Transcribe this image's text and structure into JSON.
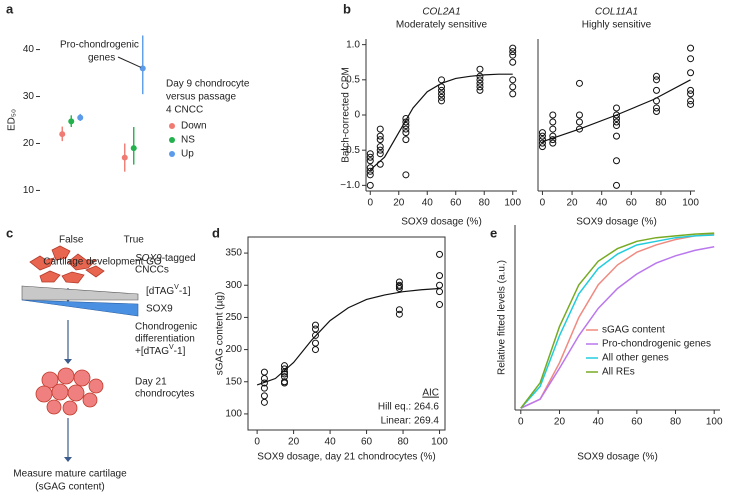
{
  "chart_data": [
    {
      "type": "pointrange",
      "panel": "a",
      "categories": [
        "False",
        "True"
      ],
      "series": [
        {
          "name": "Down",
          "color": "#f07b72",
          "values": [
            22,
            17
          ],
          "low": [
            20.5,
            14
          ],
          "high": [
            23.6,
            20
          ]
        },
        {
          "name": "NS",
          "color": "#22b14c",
          "values": [
            24.7,
            19
          ],
          "low": [
            23.5,
            15.5
          ],
          "high": [
            26,
            23.5
          ]
        },
        {
          "name": "Up",
          "color": "#5b9bea",
          "values": [
            25.5,
            36
          ],
          "low": [
            24.8,
            30.5
          ],
          "high": [
            26.3,
            43
          ]
        }
      ],
      "ylim": [
        2,
        48
      ],
      "yticks": [
        10,
        20,
        30,
        40
      ],
      "xlabel": "Cartilage development GO",
      "ylabel": "ED₅₀",
      "legend_title": [
        "Day 9 chondrocyte",
        "versus passage",
        "4 CNCC"
      ],
      "annotation": [
        "Pro-chondrogenic",
        "genes"
      ]
    },
    {
      "type": "scatter",
      "panel": "b",
      "title": "COL2A1",
      "subtitle": "Moderately sensitive",
      "x": [
        0,
        0,
        0,
        0,
        0,
        0,
        0,
        7,
        7,
        7,
        7,
        7,
        7,
        7,
        25,
        25,
        25,
        25,
        25,
        25,
        25,
        50,
        50,
        50,
        50,
        50,
        50,
        77,
        77,
        77,
        77,
        77,
        77,
        100,
        100,
        100,
        100,
        100,
        100,
        100
      ],
      "y": [
        -0.55,
        -0.6,
        -0.65,
        -0.75,
        -0.8,
        -0.85,
        -1.0,
        -0.2,
        -0.3,
        -0.35,
        -0.45,
        -0.5,
        -0.55,
        -0.7,
        -0.05,
        -0.1,
        -0.15,
        -0.2,
        -0.25,
        -0.35,
        -0.85,
        0.5,
        0.4,
        0.35,
        0.3,
        0.25,
        0.2,
        0.65,
        0.55,
        0.5,
        0.45,
        0.4,
        0.35,
        0.95,
        0.9,
        0.85,
        0.75,
        0.5,
        0.4,
        0.3
      ],
      "fit": {
        "x": [
          0,
          10,
          20,
          30,
          40,
          50,
          60,
          70,
          80,
          90,
          100
        ],
        "y": [
          -0.78,
          -0.6,
          -0.25,
          0.1,
          0.33,
          0.45,
          0.52,
          0.55,
          0.57,
          0.58,
          0.58
        ]
      },
      "xlim": [
        -3,
        103
      ],
      "ylim": [
        -1.08,
        1.08
      ],
      "xticks": [
        0,
        20,
        40,
        60,
        80,
        100
      ],
      "yticks": [
        {
          "value": -1,
          "label": "−1.0"
        },
        {
          "value": -0.5,
          "label": "−0.5"
        },
        0,
        0.5,
        {
          "value": 1,
          "label": "1.0"
        }
      ],
      "xlabel": "SOX9 dosage (%)",
      "ylabel": "Batch-corrected CPM"
    },
    {
      "type": "scatter",
      "title": "COL11A1",
      "subtitle": "Highly sensitive",
      "x": [
        0,
        0,
        0,
        0,
        0,
        7,
        7,
        7,
        7,
        7,
        7,
        25,
        25,
        25,
        25,
        50,
        50,
        50,
        50,
        50,
        50,
        50,
        50,
        77,
        77,
        77,
        77,
        77,
        77,
        100,
        100,
        100,
        100,
        100,
        100,
        100
      ],
      "y": [
        -0.25,
        -0.3,
        -0.35,
        -0.4,
        -0.45,
        0,
        -0.1,
        -0.2,
        -0.3,
        -0.35,
        -0.4,
        0.45,
        0,
        -0.1,
        -0.2,
        0.1,
        0,
        -0.05,
        -0.1,
        -0.15,
        -0.3,
        -0.65,
        -1.0,
        0.55,
        0.5,
        0.35,
        0.2,
        0.1,
        0.05,
        0.95,
        0.8,
        0.6,
        0.35,
        0.3,
        0.2,
        0.15
      ],
      "fit": {
        "x": [
          0,
          25,
          50,
          75,
          100
        ],
        "y": [
          -0.38,
          -0.2,
          0,
          0.22,
          0.5
        ]
      },
      "xlim": [
        -3,
        103
      ],
      "ylim": [
        -1.08,
        1.08
      ],
      "xticks": [
        0,
        20,
        40,
        60,
        80,
        100
      ],
      "xlabel": "SOX9 dosage (%)"
    },
    {
      "type": "scatter",
      "panel": "d",
      "x": [
        4,
        4,
        4,
        4,
        4,
        4,
        15,
        15,
        15,
        15,
        15,
        15,
        15,
        32,
        32,
        32,
        32,
        32,
        78,
        78,
        78,
        78,
        78,
        78,
        100,
        100,
        100,
        100,
        100
      ],
      "y": [
        165,
        155,
        148,
        140,
        128,
        118,
        175,
        170,
        165,
        162,
        158,
        150,
        148,
        238,
        232,
        222,
        210,
        200,
        305,
        300,
        298,
        295,
        262,
        255,
        348,
        315,
        300,
        290,
        270
      ],
      "fit": {
        "x": [
          0,
          10,
          20,
          30,
          40,
          50,
          60,
          70,
          80,
          90,
          100
        ],
        "y": [
          145,
          155,
          180,
          215,
          245,
          265,
          278,
          285,
          290,
          293,
          295
        ]
      },
      "xlim": [
        -5,
        103
      ],
      "ylim": [
        75,
        375
      ],
      "xticks": [
        0,
        20,
        40,
        60,
        80,
        100
      ],
      "yticks": [
        100,
        150,
        200,
        250,
        300,
        350
      ],
      "box": true,
      "xlabel": "SOX9 dosage, day 21 chondrocytes (%)",
      "ylabel": "sGAG content (µg)",
      "annotation": {
        "title": "AIC",
        "lines": [
          "Hill eq.: 264.6",
          "Linear: 269.4"
        ]
      }
    },
    {
      "type": "line",
      "panel": "e",
      "x": [
        0,
        10,
        20,
        30,
        40,
        50,
        60,
        70,
        80,
        90,
        100
      ],
      "series": [
        {
          "name": "sGAG content",
          "color": "#f08a80",
          "values": [
            0,
            0.05,
            0.25,
            0.5,
            0.68,
            0.79,
            0.86,
            0.9,
            0.93,
            0.95,
            0.96
          ]
        },
        {
          "name": "Pro-chondrogenic genes",
          "color": "#bb77ee",
          "values": [
            0,
            0.05,
            0.22,
            0.4,
            0.55,
            0.66,
            0.74,
            0.8,
            0.84,
            0.87,
            0.89
          ]
        },
        {
          "name": "All other genes",
          "color": "#22ccdd",
          "values": [
            0,
            0.12,
            0.4,
            0.63,
            0.77,
            0.85,
            0.9,
            0.92,
            0.94,
            0.95,
            0.955
          ]
        },
        {
          "name": "All REs",
          "color": "#77aa22",
          "values": [
            0,
            0.14,
            0.45,
            0.68,
            0.81,
            0.88,
            0.92,
            0.94,
            0.95,
            0.96,
            0.965
          ]
        }
      ],
      "xlim": [
        -3,
        103
      ],
      "ylim": [
        -0.01,
        1.01
      ],
      "xticks": [
        0,
        20,
        40,
        60,
        80,
        100
      ],
      "xlabel": "SOX9 dosage (%)",
      "ylabel": "Relative fitted levels (a.u.)"
    }
  ],
  "diagram": {
    "panel": "c",
    "cells": {
      "gene": "SOX9",
      "rest": "-tagged",
      "line2": "CNCCs"
    },
    "degron": {
      "before": "[dTAG",
      "sup": "V",
      "after": "-1]"
    },
    "protein": "SOX9",
    "step": {
      "line1": "Chondrogenic",
      "line2": "differentiation",
      "before": "+[dTAG",
      "sup": "V",
      "after": "-1]"
    },
    "result": [
      "Day 21",
      "chondrocytes"
    ],
    "measure": [
      "Measure mature cartilage",
      "(sGAG content)"
    ]
  }
}
